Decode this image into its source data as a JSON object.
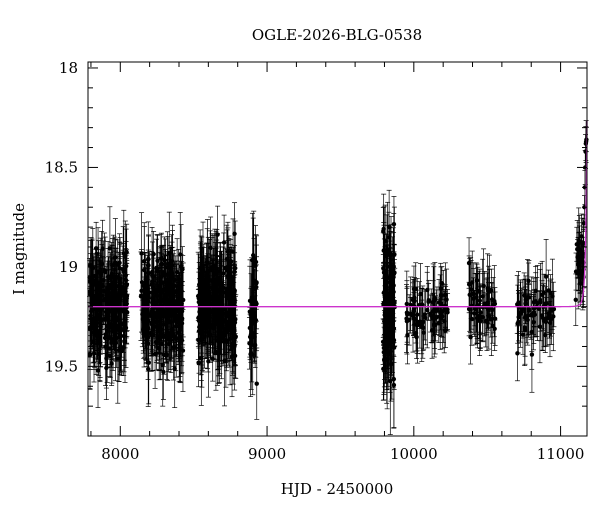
{
  "chart_data": {
    "type": "scatter",
    "title": "OGLE-2026-BLG-0538",
    "xlabel": "HJD - 2450000",
    "ylabel": "I magnitude",
    "xlim": [
      7780,
      11180
    ],
    "ylim": [
      19.85,
      17.97
    ],
    "y_inverted": true,
    "x_ticks": [
      8000,
      9000,
      10000,
      11000
    ],
    "x_tick_labels": [
      "8000",
      "9000",
      "10000",
      "11000"
    ],
    "y_ticks": [
      18,
      18.5,
      19,
      19.5
    ],
    "y_tick_labels": [
      "18",
      "18.5",
      "19",
      "19.5"
    ],
    "grid": false,
    "point_color": "#000000",
    "model_color": "#cc33cc",
    "observing_seasons": [
      {
        "x_range": [
          7790,
          8050
        ],
        "mag_center": 19.2,
        "mag_spread": 0.22,
        "err": 0.15,
        "n": 260
      },
      {
        "x_range": [
          8140,
          8430
        ],
        "mag_center": 19.19,
        "mag_spread": 0.22,
        "err": 0.15,
        "n": 280
      },
      {
        "x_range": [
          8530,
          8790
        ],
        "mag_center": 19.2,
        "mag_spread": 0.24,
        "err": 0.16,
        "n": 300
      },
      {
        "x_range": [
          8880,
          8930
        ],
        "mag_center": 19.22,
        "mag_spread": 0.28,
        "err": 0.16,
        "n": 40
      },
      {
        "x_range": [
          9790,
          9870
        ],
        "mag_center": 19.2,
        "mag_spread": 0.3,
        "err": 0.18,
        "n": 120
      },
      {
        "x_range": [
          9950,
          10230
        ],
        "mag_center": 19.22,
        "mag_spread": 0.12,
        "err": 0.13,
        "n": 80
      },
      {
        "x_range": [
          10370,
          10560
        ],
        "mag_center": 19.2,
        "mag_spread": 0.12,
        "err": 0.13,
        "n": 60
      },
      {
        "x_range": [
          10700,
          10960
        ],
        "mag_center": 19.22,
        "mag_spread": 0.12,
        "err": 0.13,
        "n": 70
      },
      {
        "x_range": [
          11100,
          11160
        ],
        "mag_center": 19.0,
        "mag_spread": 0.12,
        "err": 0.12,
        "n": 30
      }
    ],
    "rise_points": [
      {
        "x": 11150,
        "y": 18.95
      },
      {
        "x": 11155,
        "y": 18.88
      },
      {
        "x": 11160,
        "y": 18.78
      },
      {
        "x": 11163,
        "y": 18.7
      },
      {
        "x": 11166,
        "y": 18.6
      },
      {
        "x": 11168,
        "y": 18.5
      },
      {
        "x": 11170,
        "y": 18.42
      },
      {
        "x": 11172,
        "y": 18.38
      },
      {
        "x": 11174,
        "y": 18.37
      },
      {
        "x": 11176,
        "y": 18.36
      }
    ],
    "model": {
      "baseline_mag": 19.2,
      "t0": 11185,
      "tE": 16,
      "u0": 0.33
    }
  }
}
